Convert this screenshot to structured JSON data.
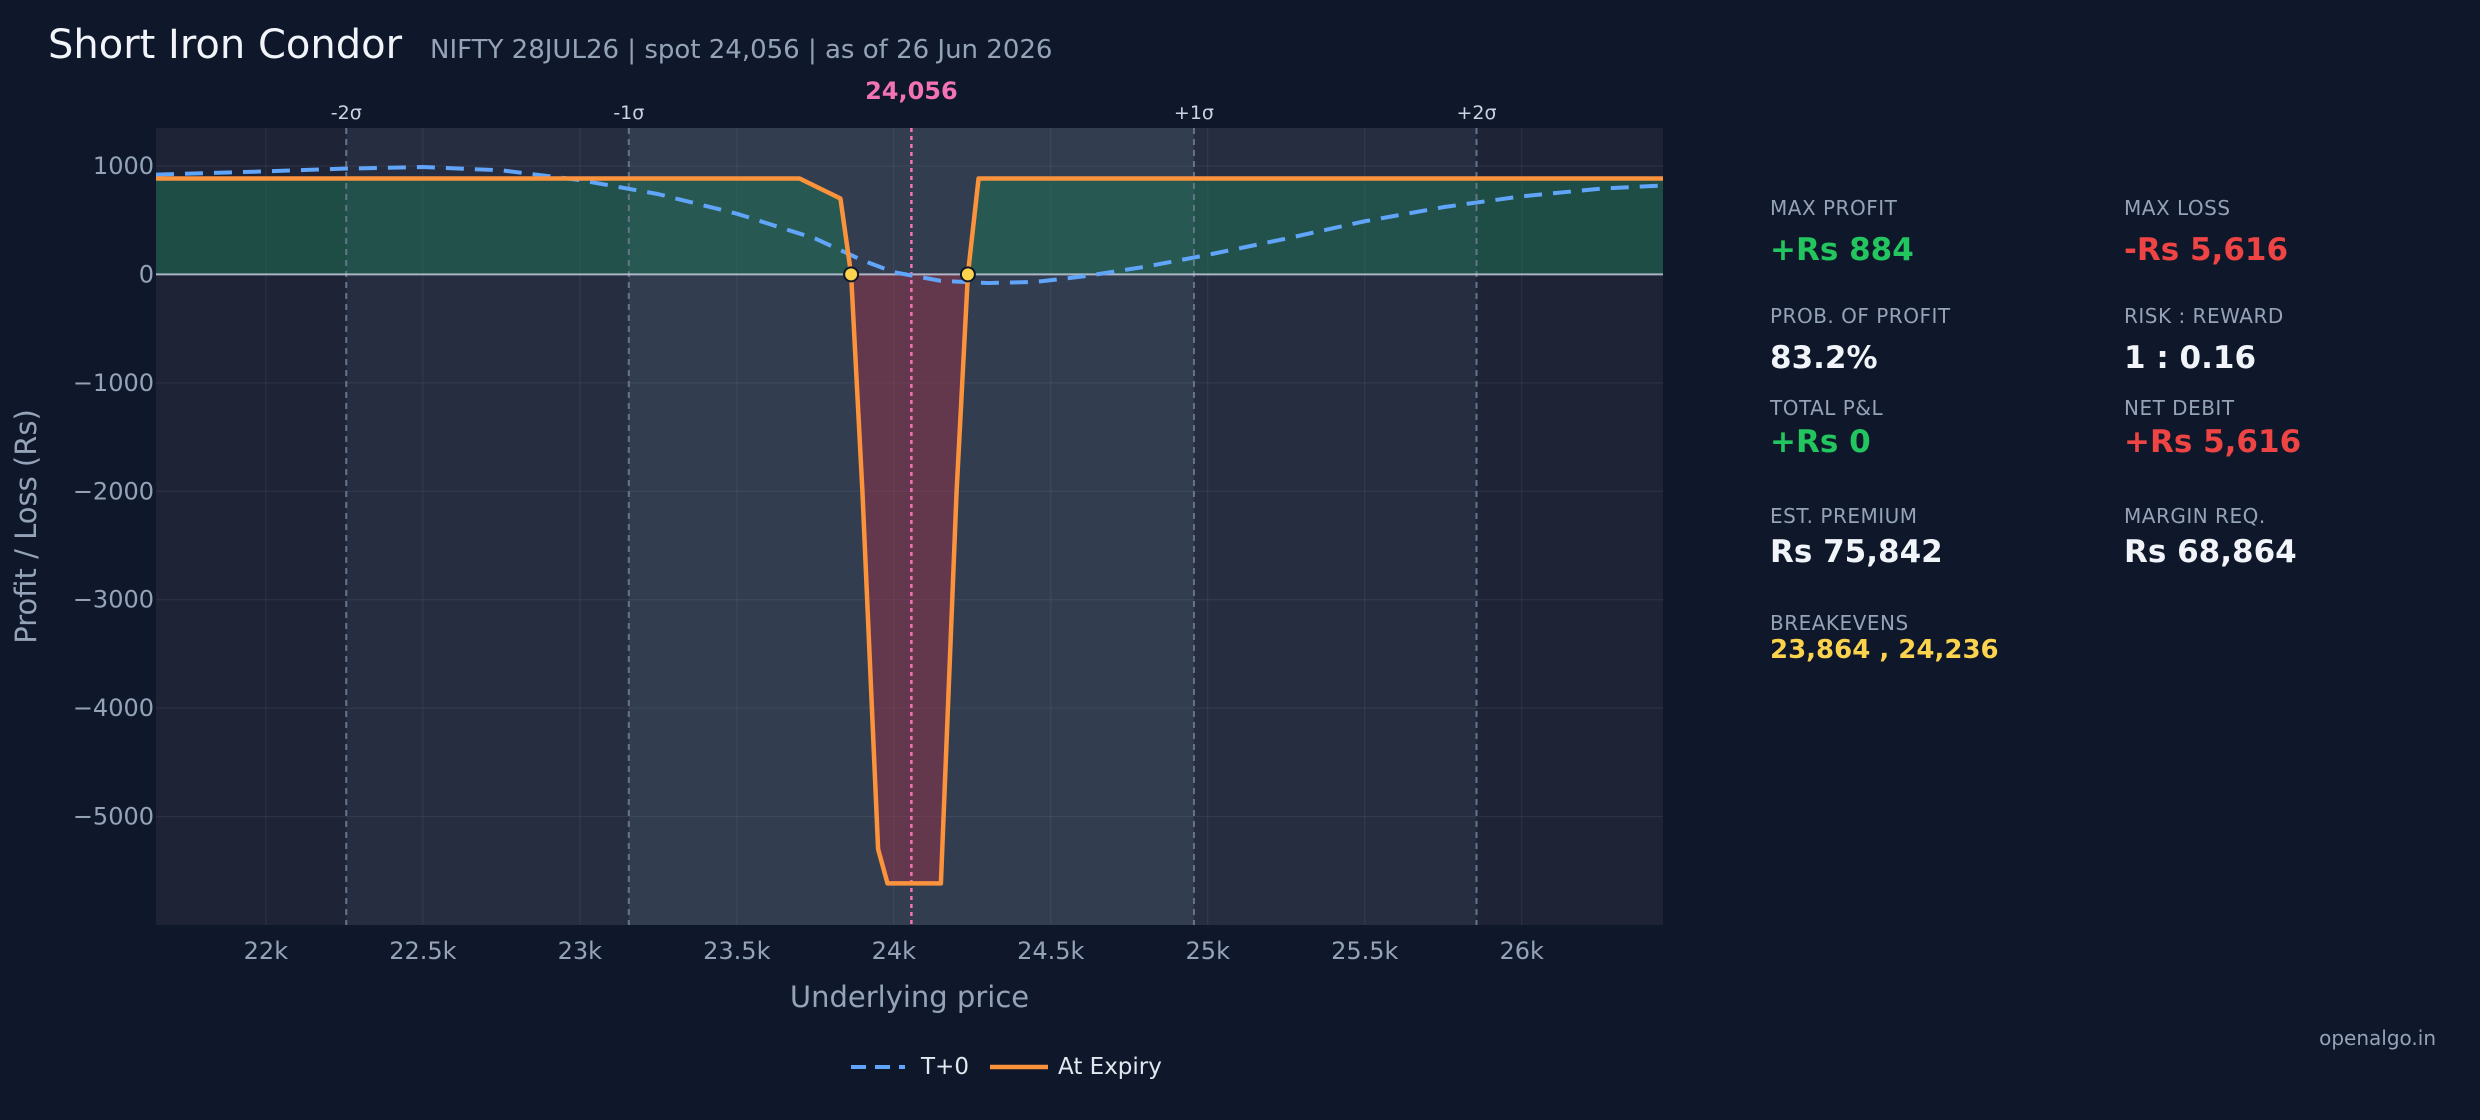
{
  "header": {
    "title": "Short Iron Condor",
    "subtitle": "NIFTY 28JUL26  |  spot 24,056  |  as of 26 Jun 2026"
  },
  "colors": {
    "background": "#0f172a",
    "plot_background": "#1e2436",
    "sigma1_band": "#323d50",
    "sigma2_band": "#272d41",
    "t0_line": "#60a5fa",
    "expiry_line": "#fb923c",
    "profit_fill": "#1f6f54",
    "loss_fill": "#9f3047",
    "spot_line": "#f472b6",
    "breakeven_marker": "#fcd34d",
    "positive": "#22c55e",
    "negative": "#ef4444",
    "neutral": "#f1f5f9",
    "breakeven_text": "#fcd34d"
  },
  "chart_data": {
    "type": "line",
    "xlabel": "Underlying price",
    "ylabel": "Profit / Loss (Rs)",
    "xlim": [
      21650,
      26450
    ],
    "ylim": [
      -6000,
      1350
    ],
    "x_ticks": [
      22000,
      22500,
      23000,
      23500,
      24000,
      24500,
      25000,
      25500,
      26000
    ],
    "x_tick_labels": [
      "22k",
      "22.5k",
      "23k",
      "23.5k",
      "24k",
      "24.5k",
      "25k",
      "25.5k",
      "26k"
    ],
    "y_ticks": [
      1000,
      0,
      -1000,
      -2000,
      -3000,
      -4000,
      -5000
    ],
    "y_tick_labels": [
      "1000",
      "0",
      "−1000",
      "−2000",
      "−3000",
      "−4000",
      "−5000"
    ],
    "spot": 24056,
    "spot_label": "24,056",
    "sigma_lines": [
      {
        "label": "-2σ",
        "x": 22256
      },
      {
        "label": "-1σ",
        "x": 23156
      },
      {
        "label": "+1σ",
        "x": 24956
      },
      {
        "label": "+2σ",
        "x": 25856
      }
    ],
    "breakevens": [
      23864,
      24236
    ],
    "series": [
      {
        "name": "T+0",
        "style": "dashed",
        "x": [
          21650,
          22000,
          22250,
          22500,
          22750,
          23000,
          23250,
          23500,
          23750,
          23900,
          24000,
          24150,
          24300,
          24450,
          24600,
          24800,
          25000,
          25250,
          25500,
          25750,
          26000,
          26250,
          26450
        ],
        "y": [
          920,
          950,
          975,
          990,
          960,
          870,
          740,
          560,
          330,
          130,
          20,
          -60,
          -80,
          -70,
          -20,
          70,
          180,
          330,
          490,
          620,
          720,
          790,
          820
        ]
      },
      {
        "name": "At Expiry",
        "style": "solid",
        "x": [
          21650,
          23700,
          23830,
          23864,
          23900,
          23950,
          23980,
          24150,
          24200,
          24236,
          24270,
          26450
        ],
        "y": [
          884,
          884,
          700,
          0,
          -2000,
          -5300,
          -5616,
          -5616,
          -2000,
          0,
          884,
          884
        ]
      }
    ],
    "legend_position": "bottom-center"
  },
  "stats": {
    "max_profit": {
      "label": "MAX PROFIT",
      "value": "+Rs 884",
      "tone": "positive"
    },
    "max_loss": {
      "label": "MAX LOSS",
      "value": "-Rs 5,616",
      "tone": "negative"
    },
    "prob_profit": {
      "label": "PROB. OF PROFIT",
      "value": "83.2%",
      "tone": "neutral"
    },
    "risk_reward": {
      "label": "RISK : REWARD",
      "value": "1 : 0.16",
      "tone": "neutral"
    },
    "total_pnl": {
      "label": "TOTAL P&L",
      "value": "+Rs 0",
      "tone": "positive"
    },
    "net_debit": {
      "label": "NET DEBIT",
      "value": "+Rs 5,616",
      "tone": "negative"
    },
    "est_premium": {
      "label": "EST. PREMIUM",
      "value": "Rs 75,842",
      "tone": "neutral"
    },
    "margin_req": {
      "label": "MARGIN REQ.",
      "value": "Rs 68,864",
      "tone": "neutral"
    },
    "breakevens": {
      "label": "BREAKEVENS",
      "value": "23,864 , 24,236",
      "tone": "breakeven_text"
    }
  },
  "footer": {
    "watermark": "openalgo.in"
  }
}
